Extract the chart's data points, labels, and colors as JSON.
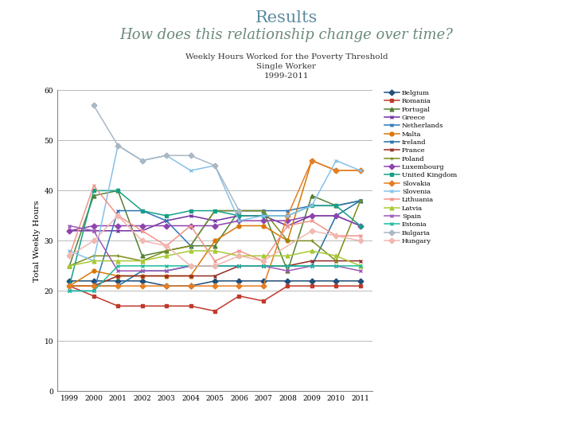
{
  "title1": "Results",
  "title2": "How does this relationship change over time?",
  "subtitle1": "Weekly Hours Worked for the Poverty Threshold",
  "subtitle2": "Single Worker",
  "subtitle3": "1999-2011",
  "ylabel": "Total Weekly Hours",
  "years": [
    1999,
    2000,
    2001,
    2002,
    2003,
    2004,
    2005,
    2006,
    2007,
    2008,
    2009,
    2010,
    2011
  ],
  "ylim": [
    0,
    60
  ],
  "yticks": [
    0,
    10,
    20,
    30,
    40,
    50,
    60
  ],
  "countries": {
    "Belgium": {
      "color": "#1f4e79",
      "marker": "D",
      "data": [
        22,
        22,
        22,
        22,
        21,
        21,
        22,
        22,
        22,
        22,
        22,
        22,
        22
      ]
    },
    "Romania": {
      "color": "#c0392b",
      "marker": "s",
      "data": [
        21,
        19,
        17,
        17,
        17,
        17,
        16,
        19,
        18,
        21,
        21,
        21,
        21
      ]
    },
    "Portugal": {
      "color": "#538135",
      "marker": "^",
      "data": [
        25,
        39,
        40,
        27,
        28,
        29,
        29,
        36,
        36,
        24,
        39,
        37,
        38
      ]
    },
    "Greece": {
      "color": "#7030a0",
      "marker": "x",
      "data": [
        32,
        32,
        32,
        32,
        34,
        35,
        34,
        35,
        35,
        33,
        35,
        35,
        33
      ]
    },
    "Netherlands": {
      "color": "#2e75b6",
      "marker": "x",
      "data": [
        20,
        20,
        36,
        36,
        34,
        29,
        36,
        36,
        36,
        36,
        37,
        37,
        38
      ]
    },
    "Malta": {
      "color": "#d97706",
      "marker": "o",
      "data": [
        21,
        24,
        23,
        23,
        23,
        23,
        30,
        33,
        33,
        30,
        46,
        44,
        44
      ]
    },
    "Ireland": {
      "color": "#1d6fa4",
      "marker": "x",
      "data": [
        21,
        21,
        21,
        24,
        24,
        25,
        25,
        25,
        25,
        25,
        25,
        35,
        38
      ]
    },
    "France": {
      "color": "#922b21",
      "marker": "x",
      "data": [
        21,
        21,
        23,
        23,
        23,
        23,
        23,
        25,
        25,
        25,
        26,
        26,
        26
      ]
    },
    "Poland": {
      "color": "#7d8c1f",
      "marker": "+",
      "data": [
        25,
        27,
        27,
        26,
        28,
        29,
        36,
        36,
        36,
        30,
        30,
        26,
        38
      ]
    },
    "Luxembourg": {
      "color": "#8e44ad",
      "marker": "D",
      "data": [
        32,
        33,
        33,
        33,
        33,
        33,
        33,
        34,
        34,
        34,
        35,
        35,
        33
      ]
    },
    "United Kingdom": {
      "color": "#16a085",
      "marker": "s",
      "data": [
        21,
        40,
        40,
        36,
        35,
        36,
        36,
        35,
        35,
        35,
        37,
        37,
        33
      ]
    },
    "Slovakia": {
      "color": "#e67e22",
      "marker": "D",
      "data": [
        21,
        21,
        21,
        21,
        21,
        21,
        21,
        21,
        21,
        35,
        46,
        44,
        44
      ]
    },
    "Slovenia": {
      "color": "#85c1e9",
      "marker": "x",
      "data": [
        28,
        26,
        49,
        46,
        47,
        44,
        45,
        34,
        35,
        35,
        37,
        46,
        44
      ]
    },
    "Lithuania": {
      "color": "#f1948a",
      "marker": "x",
      "data": [
        27,
        41,
        35,
        32,
        29,
        33,
        26,
        28,
        26,
        33,
        34,
        31,
        31
      ]
    },
    "Latvia": {
      "color": "#a9c934",
      "marker": "^",
      "data": [
        25,
        26,
        26,
        26,
        27,
        28,
        28,
        27,
        27,
        27,
        28,
        27,
        25
      ]
    },
    "Spain": {
      "color": "#9b59b6",
      "marker": "x",
      "data": [
        33,
        32,
        24,
        24,
        24,
        25,
        25,
        25,
        25,
        24,
        25,
        25,
        24
      ]
    },
    "Estonia": {
      "color": "#1abc9c",
      "marker": "x",
      "data": [
        20,
        20,
        25,
        25,
        25,
        25,
        25,
        25,
        25,
        25,
        25,
        25,
        25
      ]
    },
    "Czech Republic": {
      "color": "#d4b483",
      "marker": "o",
      "data": [
        null,
        null,
        null,
        null,
        null,
        null,
        null,
        null,
        null,
        null,
        null,
        null,
        null
      ]
    },
    "Bulgaria": {
      "color": "#aab7c4",
      "marker": "D",
      "data": [
        null,
        57,
        49,
        46,
        47,
        47,
        45,
        36,
        null,
        null,
        null,
        null,
        null
      ]
    },
    "Hungary": {
      "color": "#f0b8b0",
      "marker": "D",
      "data": [
        27,
        30,
        35,
        30,
        29,
        25,
        25,
        27,
        26,
        null,
        32,
        31,
        30
      ]
    }
  }
}
